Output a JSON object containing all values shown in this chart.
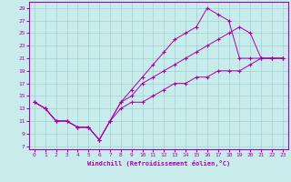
{
  "xlabel": "Windchill (Refroidissement éolien,°C)",
  "background_color": "#c8ecec",
  "line_color": "#aa00aa",
  "grid_color": "#a0d0d0",
  "xlim": [
    -0.5,
    23.5
  ],
  "ylim": [
    6.5,
    30
  ],
  "xticks": [
    0,
    1,
    2,
    3,
    4,
    5,
    6,
    7,
    8,
    9,
    10,
    11,
    12,
    13,
    14,
    15,
    16,
    17,
    18,
    19,
    20,
    21,
    22,
    23
  ],
  "yticks": [
    7,
    9,
    11,
    13,
    15,
    17,
    19,
    21,
    23,
    25,
    27,
    29
  ],
  "line1_x": [
    0,
    1,
    2,
    3,
    4,
    5,
    6,
    7,
    8,
    9,
    10,
    11,
    12,
    13,
    14,
    15,
    16,
    17,
    18,
    19,
    20,
    21,
    22,
    23
  ],
  "line1_y": [
    14,
    13,
    11,
    11,
    10,
    10,
    8,
    11,
    14,
    16,
    18,
    20,
    22,
    24,
    25,
    26,
    29,
    28,
    27,
    21,
    21,
    21,
    21,
    21
  ],
  "line2_x": [
    0,
    1,
    2,
    3,
    4,
    5,
    6,
    7,
    8,
    9,
    10,
    11,
    12,
    13,
    14,
    15,
    16,
    17,
    18,
    19,
    20,
    21,
    22,
    23
  ],
  "line2_y": [
    14,
    13,
    11,
    11,
    10,
    10,
    8,
    11,
    14,
    15,
    17,
    18,
    19,
    20,
    21,
    22,
    23,
    24,
    25,
    26,
    25,
    21,
    21,
    21
  ],
  "line3_x": [
    0,
    1,
    2,
    3,
    4,
    5,
    6,
    7,
    8,
    9,
    10,
    11,
    12,
    13,
    14,
    15,
    16,
    17,
    18,
    19,
    20,
    21,
    22,
    23
  ],
  "line3_y": [
    14,
    13,
    11,
    11,
    10,
    10,
    8,
    11,
    13,
    14,
    14,
    15,
    16,
    17,
    17,
    18,
    18,
    19,
    19,
    19,
    20,
    21,
    21,
    21
  ]
}
